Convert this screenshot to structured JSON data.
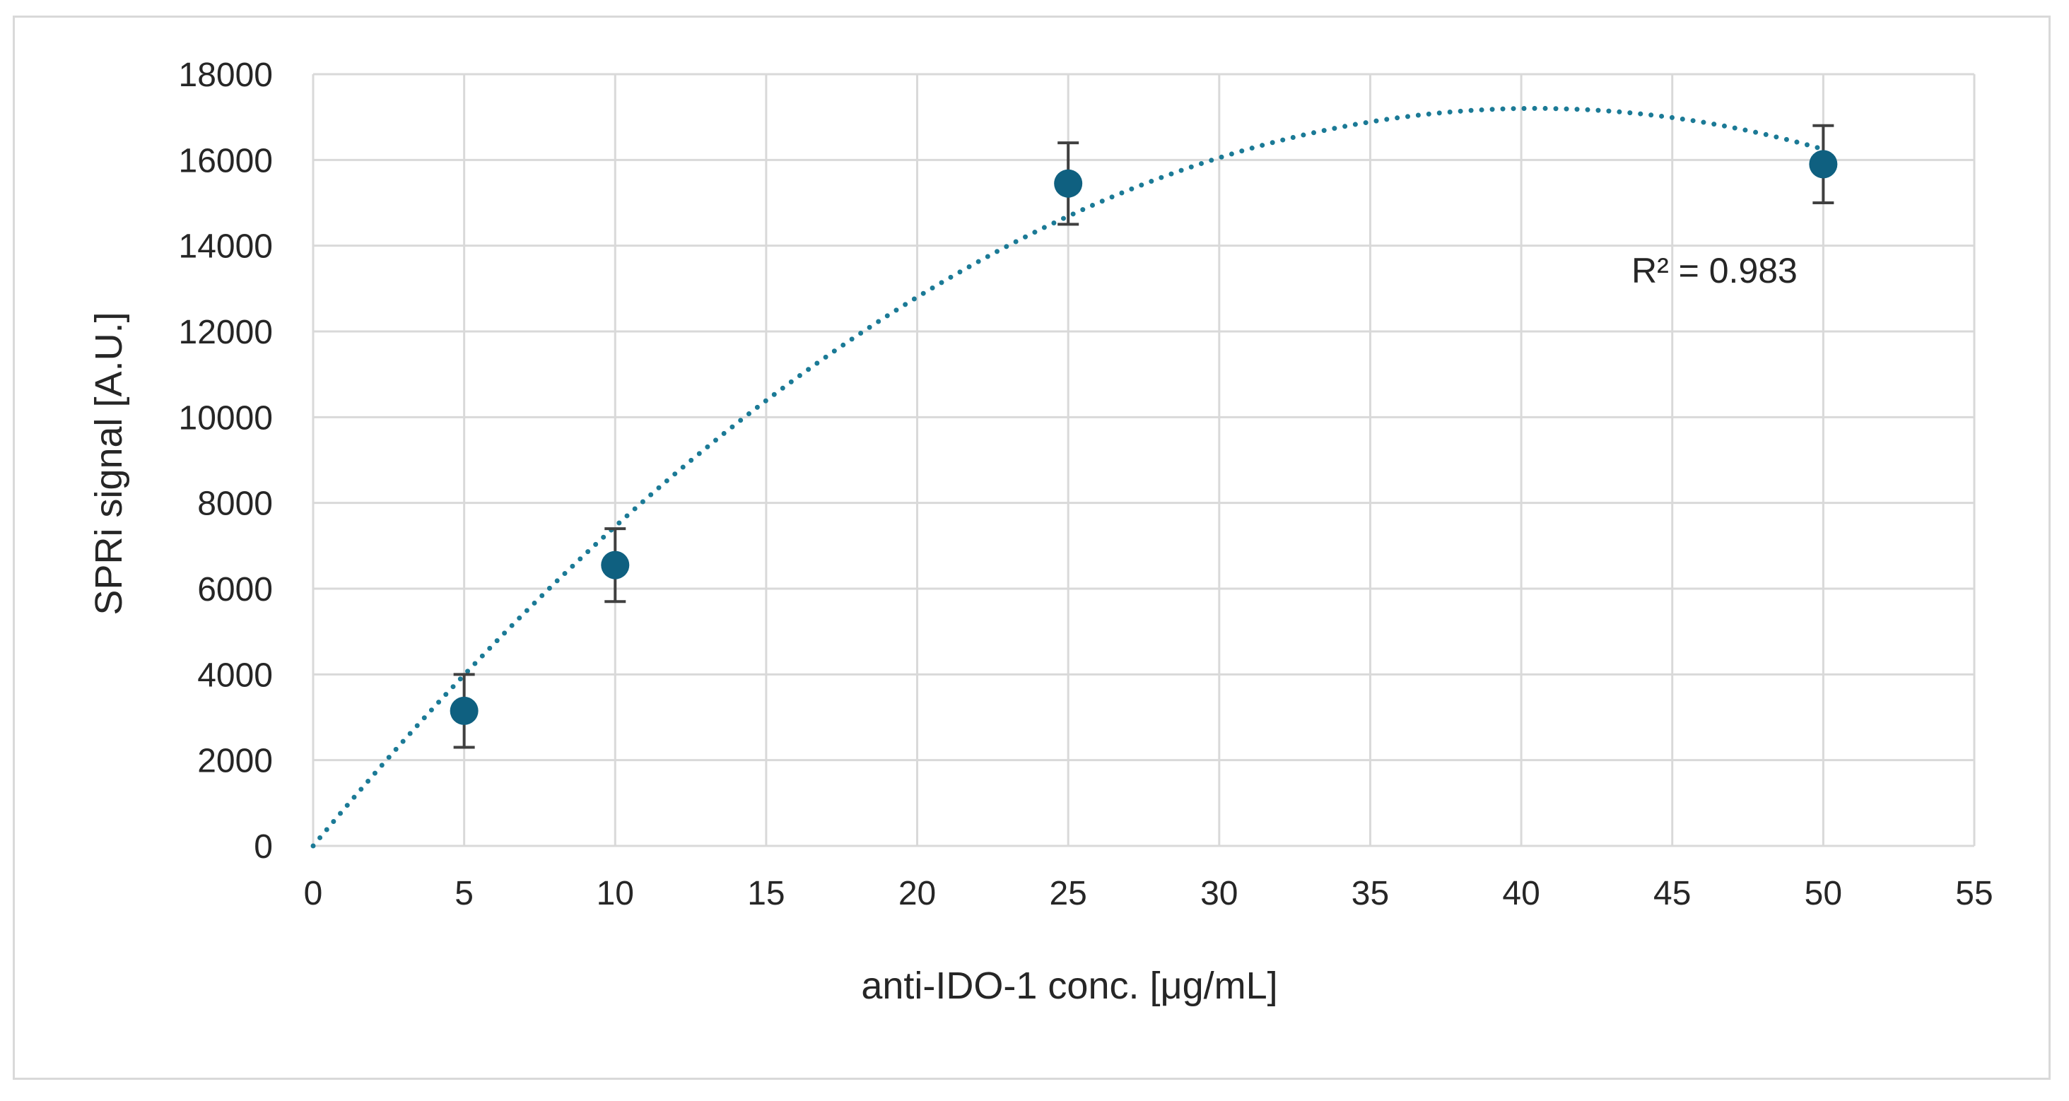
{
  "chart_data": {
    "type": "scatter",
    "title": "",
    "xlabel": "anti-IDO-1 conc. [μg/mL]",
    "ylabel": "SPRi signal [A.U.]",
    "xlim": [
      0,
      55
    ],
    "ylim": [
      0,
      18000
    ],
    "x_ticks": [
      "0",
      "5",
      "10",
      "15",
      "20",
      "25",
      "30",
      "35",
      "40",
      "45",
      "50",
      "55"
    ],
    "y_ticks": [
      "0",
      "2000",
      "4000",
      "6000",
      "8000",
      "10000",
      "12000",
      "14000",
      "16000",
      "18000"
    ],
    "grid": true,
    "points": [
      {
        "x": 5,
        "y": 3150,
        "err": 850
      },
      {
        "x": 10,
        "y": 6550,
        "err": 850
      },
      {
        "x": 25,
        "y": 15450,
        "err": 950
      },
      {
        "x": 50,
        "y": 15900,
        "err": 900
      }
    ],
    "trendline": {
      "type": "polynomial",
      "order": 2,
      "coefficients": [
        0,
        850,
        -10.5
      ],
      "style": "dotted"
    },
    "annotation": "R² = 0.983",
    "colors": {
      "marker": "#0f6080",
      "trendline": "#1b7a96",
      "error_bar": "#404040",
      "grid": "#d9d9d9"
    }
  }
}
